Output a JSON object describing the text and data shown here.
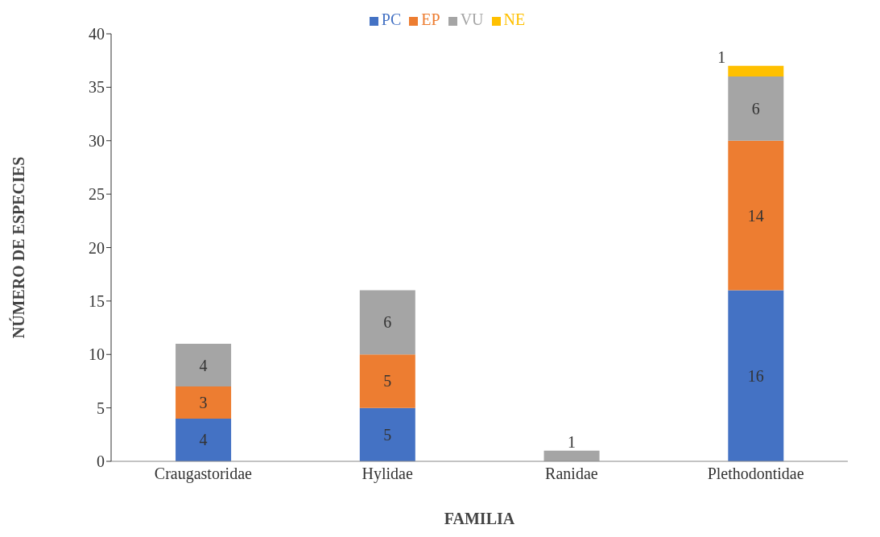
{
  "chart_data": {
    "type": "bar",
    "stacked": true,
    "xlabel": "FAMILIA",
    "ylabel": "NÚMERO DE ESPECIES",
    "categories": [
      "Craugastoridae",
      "Hylidae",
      "Ranidae",
      "Plethodontidae"
    ],
    "series": [
      {
        "name": "PC",
        "color": "#4472c4",
        "values": [
          4,
          5,
          null,
          16
        ]
      },
      {
        "name": "EP",
        "color": "#ed7d31",
        "values": [
          3,
          5,
          null,
          14
        ]
      },
      {
        "name": "VU",
        "color": "#a5a5a5",
        "values": [
          4,
          6,
          1,
          6
        ]
      },
      {
        "name": "NE",
        "color": "#ffc000",
        "values": [
          null,
          null,
          null,
          1
        ]
      }
    ],
    "ylim": [
      0,
      40
    ],
    "yticks": [
      0,
      5,
      10,
      15,
      20,
      25,
      30,
      35,
      40
    ],
    "grid": false,
    "legend": "top",
    "data_labels": true
  }
}
